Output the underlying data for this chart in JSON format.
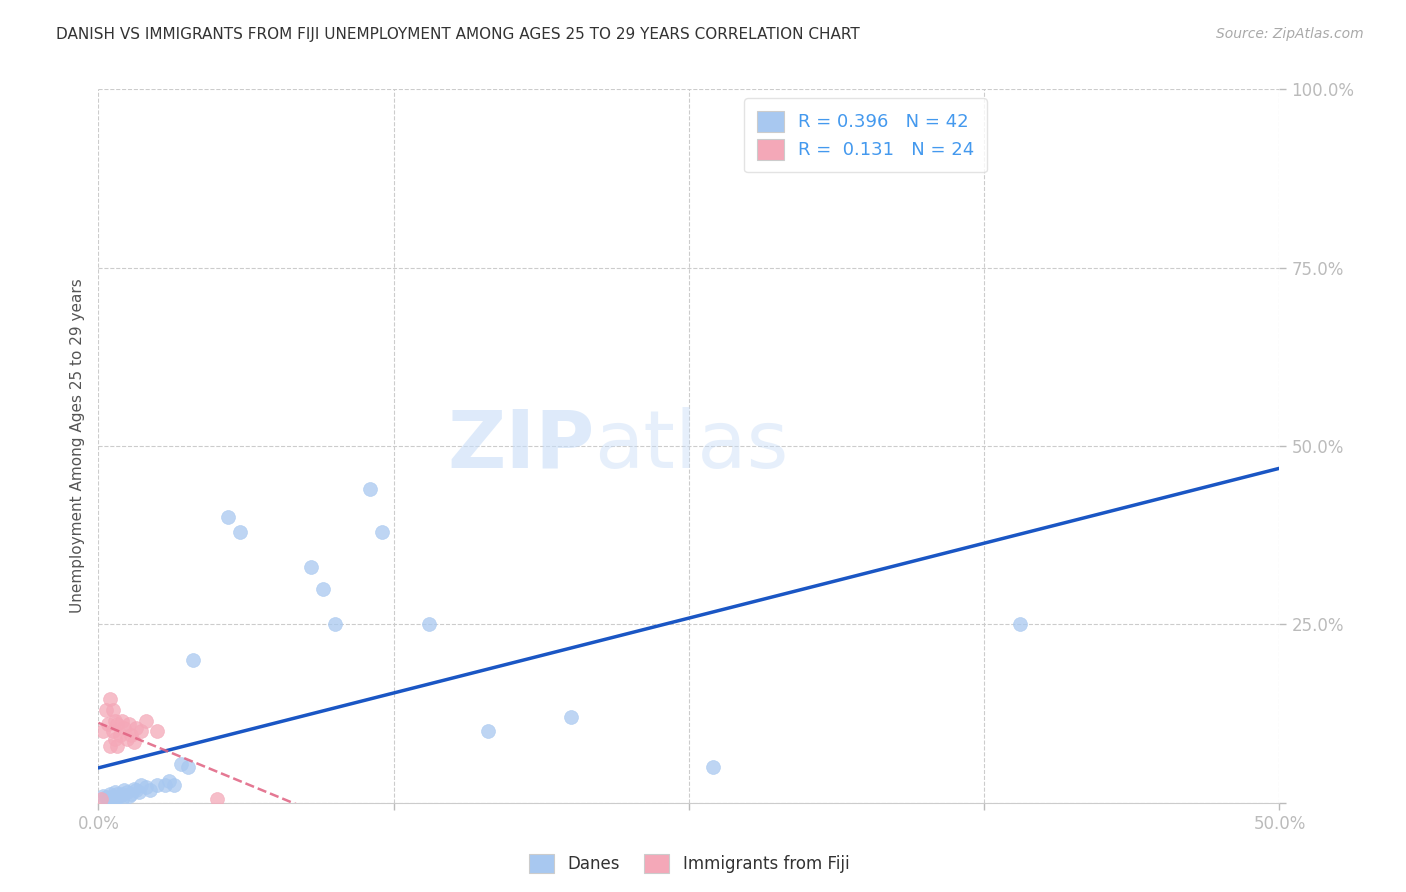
{
  "title": "DANISH VS IMMIGRANTS FROM FIJI UNEMPLOYMENT AMONG AGES 25 TO 29 YEARS CORRELATION CHART",
  "source": "Source: ZipAtlas.com",
  "ylabel_label": "Unemployment Among Ages 25 to 29 years",
  "xlim": [
    0.0,
    0.5
  ],
  "ylim": [
    0.0,
    1.0
  ],
  "danes_R": 0.396,
  "danes_N": 42,
  "fiji_R": 0.131,
  "fiji_N": 24,
  "danes_color": "#a8c8f0",
  "fiji_color": "#f4a8b8",
  "danes_line_color": "#1a56c4",
  "fiji_line_color": "#e06080",
  "watermark_zip": "ZIP",
  "watermark_atlas": "atlas",
  "danes_x": [
    0.002,
    0.003,
    0.004,
    0.005,
    0.006,
    0.006,
    0.007,
    0.007,
    0.008,
    0.008,
    0.009,
    0.01,
    0.01,
    0.011,
    0.012,
    0.013,
    0.014,
    0.015,
    0.016,
    0.017,
    0.018,
    0.02,
    0.022,
    0.025,
    0.028,
    0.03,
    0.032,
    0.035,
    0.038,
    0.04,
    0.055,
    0.06,
    0.09,
    0.095,
    0.1,
    0.115,
    0.12,
    0.14,
    0.165,
    0.2,
    0.26,
    0.39
  ],
  "danes_y": [
    0.01,
    0.008,
    0.005,
    0.012,
    0.01,
    0.005,
    0.008,
    0.015,
    0.012,
    0.008,
    0.01,
    0.006,
    0.012,
    0.018,
    0.015,
    0.01,
    0.012,
    0.02,
    0.018,
    0.015,
    0.025,
    0.022,
    0.018,
    0.025,
    0.025,
    0.03,
    0.025,
    0.055,
    0.05,
    0.2,
    0.4,
    0.38,
    0.33,
    0.3,
    0.25,
    0.44,
    0.38,
    0.25,
    0.1,
    0.12,
    0.05,
    0.25
  ],
  "fiji_x": [
    0.001,
    0.002,
    0.003,
    0.004,
    0.005,
    0.005,
    0.006,
    0.006,
    0.007,
    0.007,
    0.008,
    0.008,
    0.009,
    0.01,
    0.011,
    0.012,
    0.013,
    0.014,
    0.015,
    0.016,
    0.018,
    0.02,
    0.025,
    0.05
  ],
  "fiji_y": [
    0.005,
    0.1,
    0.13,
    0.11,
    0.08,
    0.145,
    0.1,
    0.13,
    0.09,
    0.115,
    0.08,
    0.11,
    0.095,
    0.115,
    0.105,
    0.09,
    0.11,
    0.095,
    0.085,
    0.105,
    0.1,
    0.115,
    0.1,
    0.005
  ]
}
